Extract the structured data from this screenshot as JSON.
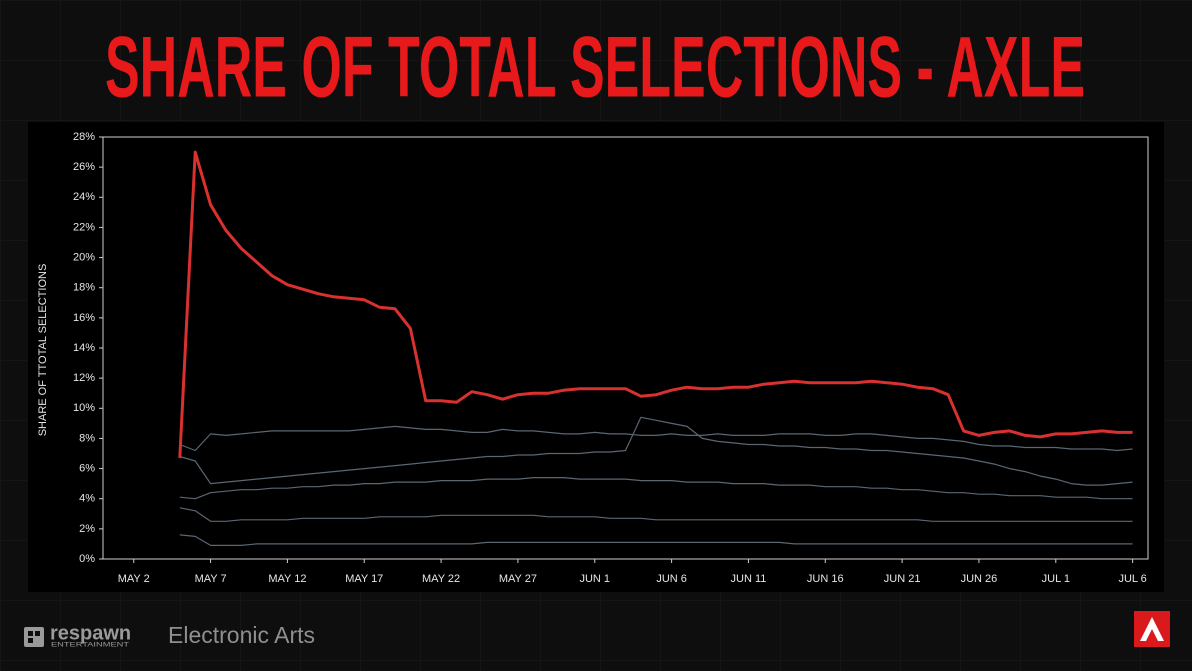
{
  "chart_data": {
    "type": "line",
    "title": "SHARE OF TOTAL SELECTIONS - AXLE",
    "y_label": "SHARE OF TTOTAL SELECTIONS",
    "categories": [
      null,
      null,
      "MAY 2",
      null,
      null,
      null,
      null,
      "MAY 7",
      null,
      null,
      null,
      null,
      "MAY 12",
      null,
      null,
      null,
      null,
      "MAY 17",
      null,
      null,
      null,
      null,
      "MAY 22",
      null,
      null,
      null,
      null,
      "MAY 27",
      null,
      null,
      null,
      null,
      "JUN 1",
      null,
      null,
      null,
      null,
      "JUN 6",
      null,
      null,
      null,
      null,
      "JUN 11",
      null,
      null,
      null,
      null,
      "JUN 16",
      null,
      null,
      null,
      null,
      "JUN 21",
      null,
      null,
      null,
      null,
      "JUN 26",
      null,
      null,
      null,
      null,
      "JUL 1",
      null,
      null,
      null,
      null,
      "JUL 6",
      null
    ],
    "ylim": [
      0,
      28
    ],
    "yticks": [
      {
        "value": 0,
        "label": "0%"
      },
      {
        "value": 2,
        "label": "2%"
      },
      {
        "value": 4,
        "label": "4%"
      },
      {
        "value": 6,
        "label": "6%"
      },
      {
        "value": 8,
        "label": "8%"
      },
      {
        "value": 10,
        "label": "10%"
      },
      {
        "value": 12,
        "label": "12%"
      },
      {
        "value": 14,
        "label": "14%"
      },
      {
        "value": 16,
        "label": "16%"
      },
      {
        "value": 18,
        "label": "18%"
      },
      {
        "value": 20,
        "label": "20%"
      },
      {
        "value": 22,
        "label": "22%"
      },
      {
        "value": 24,
        "label": "24%"
      },
      {
        "value": 26,
        "label": "26%"
      },
      {
        "value": 28,
        "label": "28%"
      }
    ],
    "series": [
      {
        "color": "#5b6672",
        "values": [
          null,
          null,
          null,
          null,
          null,
          7.6,
          7.2,
          8.3,
          8.2,
          8.3,
          8.4,
          8.5,
          8.5,
          8.5,
          8.5,
          8.5,
          8.5,
          8.6,
          8.7,
          8.8,
          8.7,
          8.6,
          8.6,
          8.5,
          8.4,
          8.4,
          8.6,
          8.5,
          8.5,
          8.4,
          8.3,
          8.3,
          8.4,
          8.3,
          8.3,
          8.2,
          8.2,
          8.3,
          8.2,
          8.2,
          8.3,
          8.2,
          8.2,
          8.2,
          8.3,
          8.3,
          8.3,
          8.2,
          8.2,
          8.3,
          8.3,
          8.2,
          8.1,
          8.0,
          8.0,
          7.9,
          7.8,
          7.6,
          7.5,
          7.5,
          7.4,
          7.4,
          7.4,
          7.3,
          7.3,
          7.3,
          7.2,
          7.3,
          null
        ]
      },
      {
        "color": "#5b6672",
        "values": [
          null,
          null,
          null,
          null,
          null,
          6.8,
          6.5,
          5.0,
          5.1,
          5.2,
          5.3,
          5.4,
          5.5,
          5.6,
          5.7,
          5.8,
          5.9,
          6.0,
          6.1,
          6.2,
          6.3,
          6.4,
          6.5,
          6.6,
          6.7,
          6.8,
          6.8,
          6.9,
          6.9,
          7.0,
          7.0,
          7.0,
          7.1,
          7.1,
          7.2,
          9.4,
          9.2,
          9.0,
          8.8,
          8.0,
          7.8,
          7.7,
          7.6,
          7.6,
          7.5,
          7.5,
          7.4,
          7.4,
          7.3,
          7.3,
          7.2,
          7.2,
          7.1,
          7.0,
          6.9,
          6.8,
          6.7,
          6.5,
          6.3,
          6.0,
          5.8,
          5.5,
          5.3,
          5.0,
          4.9,
          4.9,
          5.0,
          5.1,
          null
        ]
      },
      {
        "color": "#5b6672",
        "values": [
          null,
          null,
          null,
          null,
          null,
          4.1,
          4.0,
          4.4,
          4.5,
          4.6,
          4.6,
          4.7,
          4.7,
          4.8,
          4.8,
          4.9,
          4.9,
          5.0,
          5.0,
          5.1,
          5.1,
          5.1,
          5.2,
          5.2,
          5.2,
          5.3,
          5.3,
          5.3,
          5.4,
          5.4,
          5.4,
          5.3,
          5.3,
          5.3,
          5.3,
          5.2,
          5.2,
          5.2,
          5.1,
          5.1,
          5.1,
          5.0,
          5.0,
          5.0,
          4.9,
          4.9,
          4.9,
          4.8,
          4.8,
          4.8,
          4.7,
          4.7,
          4.6,
          4.6,
          4.5,
          4.4,
          4.4,
          4.3,
          4.3,
          4.2,
          4.2,
          4.2,
          4.1,
          4.1,
          4.1,
          4.0,
          4.0,
          4.0,
          null
        ]
      },
      {
        "color": "#5b6672",
        "values": [
          null,
          null,
          null,
          null,
          null,
          3.4,
          3.2,
          2.5,
          2.5,
          2.6,
          2.6,
          2.6,
          2.6,
          2.7,
          2.7,
          2.7,
          2.7,
          2.7,
          2.8,
          2.8,
          2.8,
          2.8,
          2.9,
          2.9,
          2.9,
          2.9,
          2.9,
          2.9,
          2.9,
          2.8,
          2.8,
          2.8,
          2.8,
          2.7,
          2.7,
          2.7,
          2.6,
          2.6,
          2.6,
          2.6,
          2.6,
          2.6,
          2.6,
          2.6,
          2.6,
          2.6,
          2.6,
          2.6,
          2.6,
          2.6,
          2.6,
          2.6,
          2.6,
          2.6,
          2.5,
          2.5,
          2.5,
          2.5,
          2.5,
          2.5,
          2.5,
          2.5,
          2.5,
          2.5,
          2.5,
          2.5,
          2.5,
          2.5,
          null
        ]
      },
      {
        "color": "#5b6672",
        "values": [
          null,
          null,
          null,
          null,
          null,
          1.6,
          1.5,
          0.9,
          0.9,
          0.9,
          1.0,
          1.0,
          1.0,
          1.0,
          1.0,
          1.0,
          1.0,
          1.0,
          1.0,
          1.0,
          1.0,
          1.0,
          1.0,
          1.0,
          1.0,
          1.1,
          1.1,
          1.1,
          1.1,
          1.1,
          1.1,
          1.1,
          1.1,
          1.1,
          1.1,
          1.1,
          1.1,
          1.1,
          1.1,
          1.1,
          1.1,
          1.1,
          1.1,
          1.1,
          1.1,
          1.0,
          1.0,
          1.0,
          1.0,
          1.0,
          1.0,
          1.0,
          1.0,
          1.0,
          1.0,
          1.0,
          1.0,
          1.0,
          1.0,
          1.0,
          1.0,
          1.0,
          1.0,
          1.0,
          1.0,
          1.0,
          1.0,
          1.0,
          null
        ]
      },
      {
        "color": "#d9312f",
        "values": [
          null,
          null,
          null,
          null,
          null,
          6.7,
          27.0,
          23.5,
          21.8,
          20.6,
          19.7,
          18.8,
          18.2,
          17.9,
          17.6,
          17.4,
          17.3,
          17.2,
          16.7,
          16.6,
          15.3,
          10.5,
          10.5,
          10.4,
          11.1,
          10.9,
          10.6,
          10.9,
          11.0,
          11.0,
          11.2,
          11.3,
          11.3,
          11.3,
          11.3,
          10.8,
          10.9,
          11.2,
          11.4,
          11.3,
          11.3,
          11.4,
          11.4,
          11.6,
          11.7,
          11.8,
          11.7,
          11.7,
          11.7,
          11.7,
          11.8,
          11.7,
          11.6,
          11.4,
          11.3,
          10.9,
          8.5,
          8.2,
          8.4,
          8.5,
          8.2,
          8.1,
          8.3,
          8.3,
          8.4,
          8.5,
          8.4,
          8.4,
          null
        ]
      }
    ]
  },
  "footer": {
    "left_brand": "respawn",
    "left_sub": "ENTERTAINMENT",
    "right_brand": "Electronic Arts"
  }
}
